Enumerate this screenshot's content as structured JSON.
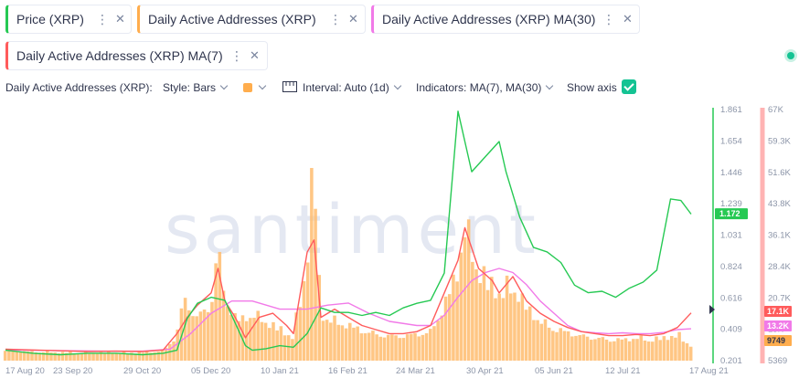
{
  "metric_chips": [
    {
      "label": "Price (XRP)",
      "color": "#26c953"
    },
    {
      "label": "Daily Active Addresses (XRP)",
      "color": "#ffad4d"
    },
    {
      "label": "Daily Active Addresses (XRP) MA(30)",
      "color": "#f17ae8"
    },
    {
      "label": "Daily Active Addresses (XRP) MA(7)",
      "color": "#ff5b5b"
    }
  ],
  "chip_icons": {
    "more": "vertical-dots-icon",
    "remove": "close-icon"
  },
  "toolbar": {
    "metric_label": "Daily Active Addresses (XRP):",
    "style_label": "Style: Bars",
    "color_swatch": "#ffad4d",
    "interval_icon": "calendar-ruler-icon",
    "interval_label": "Interval: Auto (1d)",
    "indicators_label": "Indicators: MA(7), MA(30)",
    "show_axis_label": "Show axis",
    "show_axis_checked": true
  },
  "status": {
    "connected": true,
    "color": "#14c393"
  },
  "watermark": "santiment",
  "chart_data": {
    "type": "bar+line",
    "x_ticks": [
      "17 Aug 20",
      "23 Sep 20",
      "29 Oct 20",
      "05 Dec 20",
      "10 Jan 21",
      "16 Feb 21",
      "24 Mar 21",
      "30 Apr 21",
      "05 Jun 21",
      "12 Jul 21",
      "17 Aug 21"
    ],
    "price_axis": {
      "ticks": [
        "1.861",
        "1.654",
        "1.446",
        "1.239",
        "1.031",
        "0.824",
        "0.616",
        "0.409",
        "0.201"
      ],
      "range": [
        0.201,
        1.861
      ],
      "color": "#26c953",
      "current_label": "1.172"
    },
    "address_axis": {
      "ticks": [
        "67K",
        "59.3K",
        "51.6K",
        "43.8K",
        "36.1K",
        "28.4K",
        "20.7K",
        "13K",
        "5369"
      ],
      "range": [
        5369,
        67000
      ],
      "color": "#ffb3b3",
      "current_labels": [
        {
          "text": "17.1K",
          "bg": "#ff5b5b",
          "fg": "#ffffff"
        },
        {
          "text": "13.2K",
          "bg": "#f17ae8",
          "fg": "#ffffff"
        },
        {
          "text": "9749",
          "bg": "#ffad4d",
          "fg": "#2f354d"
        }
      ]
    },
    "series": [
      {
        "name": "Price (XRP)",
        "axis": "price",
        "kind": "line",
        "color": "#26c953",
        "points": [
          [
            0,
            0.27
          ],
          [
            0.04,
            0.25
          ],
          [
            0.08,
            0.24
          ],
          [
            0.12,
            0.25
          ],
          [
            0.16,
            0.25
          ],
          [
            0.2,
            0.24
          ],
          [
            0.23,
            0.25
          ],
          [
            0.25,
            0.27
          ],
          [
            0.265,
            0.48
          ],
          [
            0.28,
            0.58
          ],
          [
            0.3,
            0.62
          ],
          [
            0.32,
            0.6
          ],
          [
            0.335,
            0.45
          ],
          [
            0.35,
            0.3
          ],
          [
            0.36,
            0.27
          ],
          [
            0.38,
            0.28
          ],
          [
            0.4,
            0.3
          ],
          [
            0.42,
            0.29
          ],
          [
            0.44,
            0.38
          ],
          [
            0.46,
            0.55
          ],
          [
            0.48,
            0.52
          ],
          [
            0.5,
            0.52
          ],
          [
            0.52,
            0.5
          ],
          [
            0.54,
            0.52
          ],
          [
            0.56,
            0.5
          ],
          [
            0.58,
            0.55
          ],
          [
            0.6,
            0.58
          ],
          [
            0.62,
            0.6
          ],
          [
            0.64,
            0.78
          ],
          [
            0.66,
            1.85
          ],
          [
            0.68,
            1.45
          ],
          [
            0.7,
            1.55
          ],
          [
            0.72,
            1.65
          ],
          [
            0.73,
            1.45
          ],
          [
            0.75,
            1.15
          ],
          [
            0.77,
            0.95
          ],
          [
            0.79,
            0.92
          ],
          [
            0.81,
            0.85
          ],
          [
            0.83,
            0.7
          ],
          [
            0.85,
            0.65
          ],
          [
            0.87,
            0.66
          ],
          [
            0.89,
            0.62
          ],
          [
            0.91,
            0.68
          ],
          [
            0.93,
            0.72
          ],
          [
            0.95,
            0.8
          ],
          [
            0.97,
            1.27
          ],
          [
            0.985,
            1.26
          ],
          [
            1.0,
            1.17
          ]
        ]
      },
      {
        "name": "Daily Active Addresses (XRP) MA(7)",
        "axis": "addresses",
        "kind": "line",
        "color": "#ff5b5b",
        "points": [
          [
            0,
            8200
          ],
          [
            0.04,
            8000
          ],
          [
            0.08,
            7800
          ],
          [
            0.12,
            7600
          ],
          [
            0.16,
            7700
          ],
          [
            0.2,
            7600
          ],
          [
            0.23,
            8000
          ],
          [
            0.25,
            12000
          ],
          [
            0.265,
            16000
          ],
          [
            0.28,
            19000
          ],
          [
            0.3,
            22000
          ],
          [
            0.31,
            28000
          ],
          [
            0.32,
            20000
          ],
          [
            0.335,
            16000
          ],
          [
            0.35,
            11000
          ],
          [
            0.37,
            16000
          ],
          [
            0.39,
            17000
          ],
          [
            0.41,
            14000
          ],
          [
            0.42,
            12000
          ],
          [
            0.44,
            32000
          ],
          [
            0.45,
            35000
          ],
          [
            0.46,
            16000
          ],
          [
            0.48,
            18000
          ],
          [
            0.5,
            16000
          ],
          [
            0.52,
            14000
          ],
          [
            0.54,
            13000
          ],
          [
            0.56,
            12000
          ],
          [
            0.58,
            12000
          ],
          [
            0.6,
            12500
          ],
          [
            0.62,
            14000
          ],
          [
            0.64,
            22000
          ],
          [
            0.66,
            30000
          ],
          [
            0.67,
            38000
          ],
          [
            0.69,
            28000
          ],
          [
            0.71,
            25000
          ],
          [
            0.72,
            22000
          ],
          [
            0.74,
            26000
          ],
          [
            0.76,
            20000
          ],
          [
            0.78,
            17000
          ],
          [
            0.8,
            15000
          ],
          [
            0.82,
            13500
          ],
          [
            0.84,
            12500
          ],
          [
            0.86,
            12000
          ],
          [
            0.88,
            11500
          ],
          [
            0.9,
            11500
          ],
          [
            0.92,
            11800
          ],
          [
            0.94,
            11500
          ],
          [
            0.96,
            12000
          ],
          [
            0.98,
            13500
          ],
          [
            1.0,
            17100
          ]
        ]
      },
      {
        "name": "Daily Active Addresses (XRP) MA(30)",
        "axis": "addresses",
        "kind": "line",
        "color": "#f17ae8",
        "points": [
          [
            0,
            8000
          ],
          [
            0.05,
            7900
          ],
          [
            0.1,
            7800
          ],
          [
            0.15,
            7700
          ],
          [
            0.2,
            7700
          ],
          [
            0.24,
            8200
          ],
          [
            0.27,
            12000
          ],
          [
            0.3,
            17000
          ],
          [
            0.33,
            20000
          ],
          [
            0.36,
            20000
          ],
          [
            0.4,
            18000
          ],
          [
            0.44,
            18000
          ],
          [
            0.47,
            19000
          ],
          [
            0.5,
            19500
          ],
          [
            0.53,
            17000
          ],
          [
            0.56,
            15000
          ],
          [
            0.6,
            14000
          ],
          [
            0.62,
            14000
          ],
          [
            0.64,
            16500
          ],
          [
            0.66,
            21000
          ],
          [
            0.68,
            25000
          ],
          [
            0.7,
            27000
          ],
          [
            0.72,
            28000
          ],
          [
            0.74,
            27000
          ],
          [
            0.76,
            24000
          ],
          [
            0.78,
            20000
          ],
          [
            0.8,
            17000
          ],
          [
            0.82,
            14000
          ],
          [
            0.84,
            12500
          ],
          [
            0.86,
            12200
          ],
          [
            0.88,
            12000
          ],
          [
            0.9,
            12200
          ],
          [
            0.92,
            12000
          ],
          [
            0.94,
            12000
          ],
          [
            0.96,
            12300
          ],
          [
            0.98,
            13000
          ],
          [
            1.0,
            13200
          ]
        ]
      }
    ],
    "bars": {
      "name": "Daily Active Addresses (XRP)",
      "axis": "addresses",
      "color": "#ffbc6e",
      "count": 180,
      "envelope": [
        [
          0,
          8000
        ],
        [
          0.04,
          7800
        ],
        [
          0.08,
          7600
        ],
        [
          0.12,
          7500
        ],
        [
          0.16,
          7500
        ],
        [
          0.2,
          7600
        ],
        [
          0.23,
          8000
        ],
        [
          0.25,
          12000
        ],
        [
          0.26,
          22000
        ],
        [
          0.28,
          17000
        ],
        [
          0.3,
          20000
        ],
        [
          0.31,
          36000
        ],
        [
          0.32,
          22000
        ],
        [
          0.34,
          16000
        ],
        [
          0.36,
          18000
        ],
        [
          0.38,
          16000
        ],
        [
          0.4,
          14000
        ],
        [
          0.42,
          12000
        ],
        [
          0.44,
          32000
        ],
        [
          0.45,
          62000
        ],
        [
          0.46,
          18000
        ],
        [
          0.48,
          16000
        ],
        [
          0.5,
          15000
        ],
        [
          0.52,
          13500
        ],
        [
          0.54,
          12500
        ],
        [
          0.56,
          12000
        ],
        [
          0.58,
          12000
        ],
        [
          0.6,
          12500
        ],
        [
          0.62,
          13000
        ],
        [
          0.64,
          20000
        ],
        [
          0.66,
          30000
        ],
        [
          0.67,
          42000
        ],
        [
          0.69,
          30000
        ],
        [
          0.71,
          26000
        ],
        [
          0.72,
          24000
        ],
        [
          0.74,
          26000
        ],
        [
          0.76,
          20000
        ],
        [
          0.78,
          16000
        ],
        [
          0.8,
          14000
        ],
        [
          0.82,
          13000
        ],
        [
          0.84,
          12000
        ],
        [
          0.86,
          11500
        ],
        [
          0.88,
          11000
        ],
        [
          0.9,
          11000
        ],
        [
          0.92,
          11500
        ],
        [
          0.94,
          11000
        ],
        [
          0.96,
          11500
        ],
        [
          0.98,
          12500
        ],
        [
          1.0,
          9749
        ]
      ]
    },
    "grid": false,
    "legend": "top"
  }
}
